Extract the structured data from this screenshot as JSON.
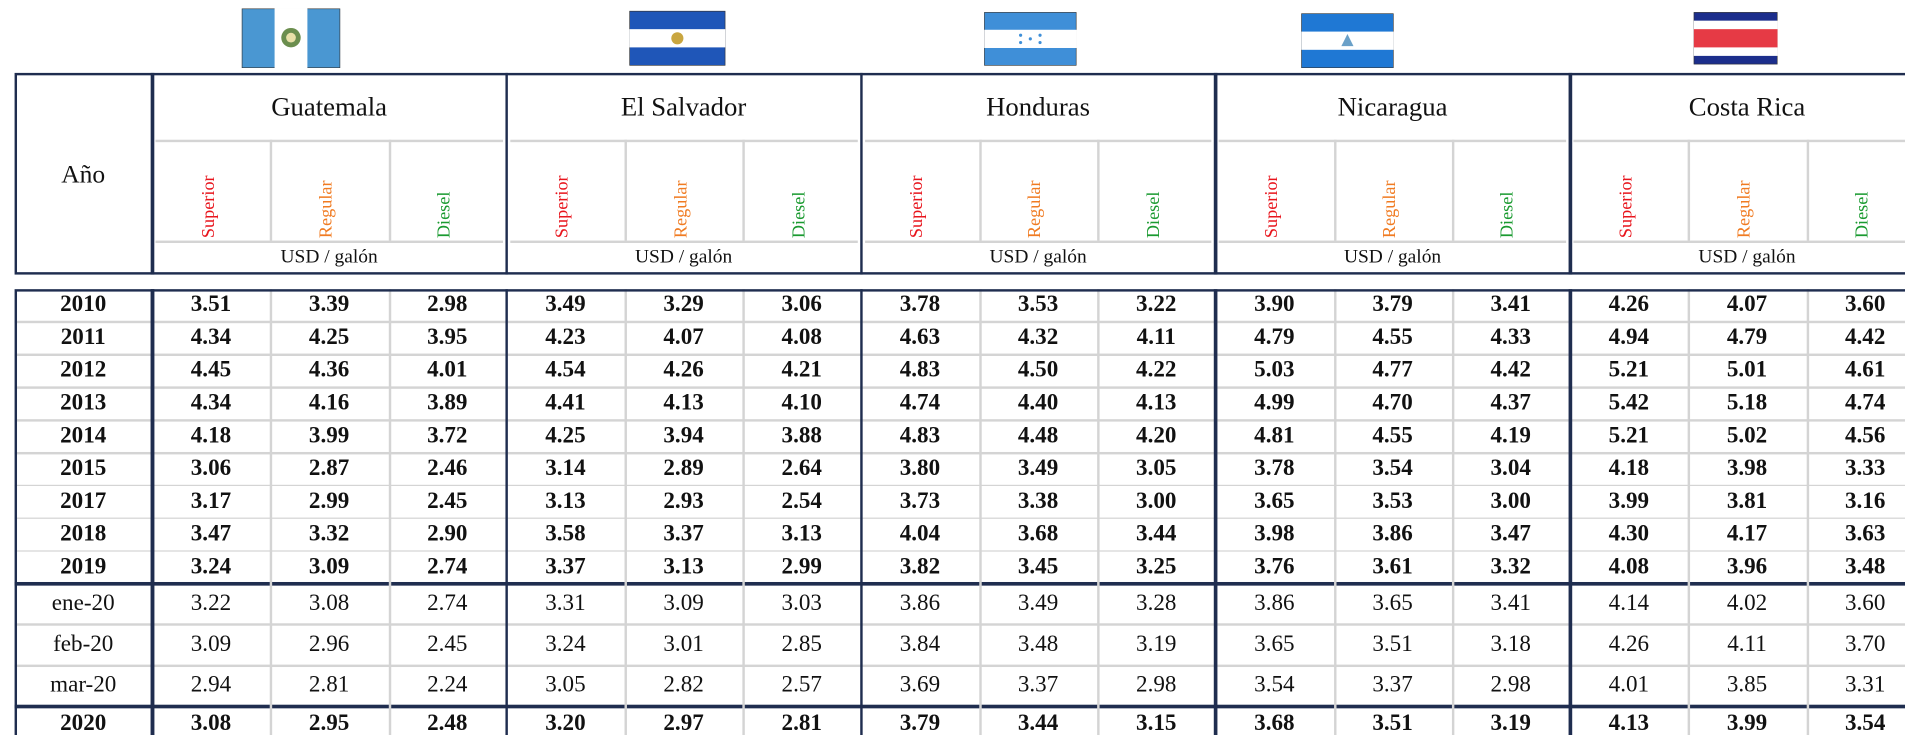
{
  "header": {
    "year_label": "Año",
    "countries": [
      "Guatemala",
      "El Salvador",
      "Honduras",
      "Nicaragua",
      "Costa Rica"
    ],
    "fuels": [
      "Superior",
      "Regular",
      "Diesel"
    ],
    "unit": "USD / galón"
  },
  "table": {
    "rows": [
      {
        "label": "2010",
        "values": [
          "3.51",
          "3.39",
          "2.98",
          "3.49",
          "3.29",
          "3.06",
          "3.78",
          "3.53",
          "3.22",
          "3.90",
          "3.79",
          "3.41",
          "4.26",
          "4.07",
          "3.60"
        ]
      },
      {
        "label": "2011",
        "values": [
          "4.34",
          "4.25",
          "3.95",
          "4.23",
          "4.07",
          "4.08",
          "4.63",
          "4.32",
          "4.11",
          "4.79",
          "4.55",
          "4.33",
          "4.94",
          "4.79",
          "4.42"
        ]
      },
      {
        "label": "2012",
        "values": [
          "4.45",
          "4.36",
          "4.01",
          "4.54",
          "4.26",
          "4.21",
          "4.83",
          "4.50",
          "4.22",
          "5.03",
          "4.77",
          "4.42",
          "5.21",
          "5.01",
          "4.61"
        ]
      },
      {
        "label": "2013",
        "values": [
          "4.34",
          "4.16",
          "3.89",
          "4.41",
          "4.13",
          "4.10",
          "4.74",
          "4.40",
          "4.13",
          "4.99",
          "4.70",
          "4.37",
          "5.42",
          "5.18",
          "4.74"
        ]
      },
      {
        "label": "2014",
        "values": [
          "4.18",
          "3.99",
          "3.72",
          "4.25",
          "3.94",
          "3.88",
          "4.83",
          "4.48",
          "4.20",
          "4.81",
          "4.55",
          "4.19",
          "5.21",
          "5.02",
          "4.56"
        ]
      },
      {
        "label": "2015",
        "values": [
          "3.06",
          "2.87",
          "2.46",
          "3.14",
          "2.89",
          "2.64",
          "3.80",
          "3.49",
          "3.05",
          "3.78",
          "3.54",
          "3.04",
          "4.18",
          "3.98",
          "3.33"
        ]
      },
      {
        "label": "2017",
        "values": [
          "3.17",
          "2.99",
          "2.45",
          "3.13",
          "2.93",
          "2.54",
          "3.73",
          "3.38",
          "3.00",
          "3.65",
          "3.53",
          "3.00",
          "3.99",
          "3.81",
          "3.16"
        ]
      },
      {
        "label": "2018",
        "values": [
          "3.47",
          "3.32",
          "2.90",
          "3.58",
          "3.37",
          "3.13",
          "4.04",
          "3.68",
          "3.44",
          "3.98",
          "3.86",
          "3.47",
          "4.30",
          "4.17",
          "3.63"
        ]
      },
      {
        "label": "2019",
        "values": [
          "3.24",
          "3.09",
          "2.74",
          "3.37",
          "3.13",
          "2.99",
          "3.82",
          "3.45",
          "3.25",
          "3.76",
          "3.61",
          "3.32",
          "4.08",
          "3.96",
          "3.48"
        ]
      },
      {
        "label": "ene-20",
        "values": [
          "3.22",
          "3.08",
          "2.74",
          "3.31",
          "3.09",
          "3.03",
          "3.86",
          "3.49",
          "3.28",
          "3.86",
          "3.65",
          "3.41",
          "4.14",
          "4.02",
          "3.60"
        ]
      },
      {
        "label": "feb-20",
        "values": [
          "3.09",
          "2.96",
          "2.45",
          "3.24",
          "3.01",
          "2.85",
          "3.84",
          "3.48",
          "3.19",
          "3.65",
          "3.51",
          "3.18",
          "4.26",
          "4.11",
          "3.70"
        ]
      },
      {
        "label": "mar-20",
        "values": [
          "2.94",
          "2.81",
          "2.24",
          "3.05",
          "2.82",
          "2.57",
          "3.69",
          "3.37",
          "2.98",
          "3.54",
          "3.37",
          "2.98",
          "4.01",
          "3.85",
          "3.31"
        ]
      },
      {
        "label": "2020",
        "values": [
          "3.08",
          "2.95",
          "2.48",
          "3.20",
          "2.97",
          "2.81",
          "3.79",
          "3.44",
          "3.15",
          "3.68",
          "3.51",
          "3.19",
          "4.13",
          "3.99",
          "3.54"
        ]
      }
    ]
  }
}
